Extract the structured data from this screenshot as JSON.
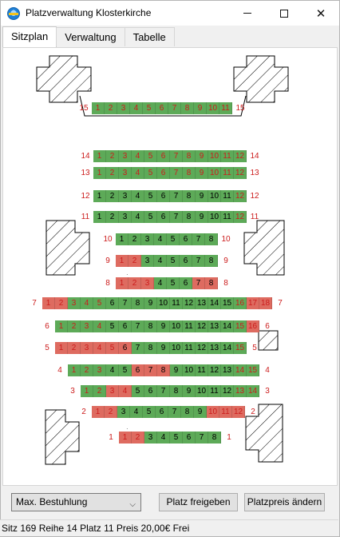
{
  "window": {
    "title": "Platzverwaltung Klosterkirche",
    "minimize_icon": "minimize-icon",
    "maximize_icon": "maximize-icon",
    "close_icon": "close-icon"
  },
  "tabs": [
    {
      "label": "Sitzplan",
      "active": true
    },
    {
      "label": "Verwaltung",
      "active": false
    },
    {
      "label": "Tabelle",
      "active": false
    }
  ],
  "colors": {
    "free": "#5daa58",
    "taken": "#de6b60",
    "label": "#cc1c1c"
  },
  "seat_plan": {
    "rows": [
      {
        "row": "15",
        "seats": [
          "1",
          "2",
          "3",
          "4",
          "5",
          "6",
          "7",
          "8",
          "9",
          "10",
          "11"
        ],
        "taken": [],
        "red_numbers": [
          "1",
          "2",
          "3",
          "4",
          "5",
          "6",
          "7",
          "8",
          "9",
          "10",
          "11"
        ]
      },
      {
        "row": "14",
        "seats": [
          "1",
          "2",
          "3",
          "4",
          "5",
          "6",
          "7",
          "8",
          "9",
          "10",
          "11",
          "12"
        ],
        "taken": [],
        "red_numbers": [
          "1",
          "2",
          "3",
          "4",
          "5",
          "6",
          "7",
          "8",
          "9",
          "10",
          "11",
          "12"
        ]
      },
      {
        "row": "13",
        "seats": [
          "1",
          "2",
          "3",
          "4",
          "5",
          "6",
          "7",
          "8",
          "9",
          "10",
          "11",
          "12"
        ],
        "taken": [],
        "red_numbers": [
          "1",
          "2",
          "3",
          "4",
          "5",
          "6",
          "7",
          "8",
          "9",
          "10",
          "11",
          "12"
        ]
      },
      {
        "row": "12",
        "seats": [
          "1",
          "2",
          "3",
          "4",
          "5",
          "6",
          "7",
          "8",
          "9",
          "10",
          "11",
          "12"
        ],
        "taken": [],
        "red_numbers": [
          "12"
        ]
      },
      {
        "row": "11",
        "seats": [
          "1",
          "2",
          "3",
          "4",
          "5",
          "6",
          "7",
          "8",
          "9",
          "10",
          "11",
          "12"
        ],
        "taken": [],
        "red_numbers": [
          "12"
        ]
      },
      {
        "row": "10",
        "seats": [
          "1",
          "2",
          "3",
          "4",
          "5",
          "6",
          "7",
          "8"
        ],
        "taken": [],
        "red_numbers": []
      },
      {
        "row": "9",
        "seats": [
          "1",
          "2",
          "3",
          "4",
          "5",
          "6",
          "7",
          "8"
        ],
        "taken": [
          "1",
          "2"
        ],
        "red_numbers": [
          "1",
          "2"
        ]
      },
      {
        "row": "8",
        "seats": [
          "1",
          "2",
          "3",
          "4",
          "5",
          "6",
          "7",
          "8"
        ],
        "taken": [
          "1",
          "2",
          "3",
          "7",
          "8"
        ],
        "red_numbers": [
          "1",
          "2",
          "3"
        ]
      },
      {
        "row": "7",
        "seats": [
          "1",
          "2",
          "3",
          "4",
          "5",
          "6",
          "7",
          "8",
          "9",
          "10",
          "11",
          "12",
          "13",
          "14",
          "15",
          "16",
          "17",
          "18"
        ],
        "taken": [
          "1",
          "2",
          "17",
          "18"
        ],
        "red_numbers": [
          "1",
          "2",
          "3",
          "4",
          "5",
          "16",
          "17",
          "18"
        ]
      },
      {
        "row": "6",
        "seats": [
          "1",
          "2",
          "3",
          "4",
          "5",
          "6",
          "7",
          "8",
          "9",
          "10",
          "11",
          "12",
          "13",
          "14",
          "15",
          "16"
        ],
        "taken": [
          "16"
        ],
        "red_numbers": [
          "1",
          "2",
          "3",
          "4",
          "15",
          "16"
        ]
      },
      {
        "row": "5",
        "seats": [
          "1",
          "2",
          "3",
          "4",
          "5",
          "6",
          "7",
          "8",
          "9",
          "10",
          "11",
          "12",
          "13",
          "14",
          "15"
        ],
        "taken": [
          "1",
          "2",
          "3",
          "4",
          "5",
          "6"
        ],
        "red_numbers": [
          "1",
          "2",
          "3",
          "4",
          "5",
          "15"
        ]
      },
      {
        "row": "4",
        "seats": [
          "1",
          "2",
          "3",
          "4",
          "5",
          "6",
          "7",
          "8",
          "9",
          "10",
          "11",
          "12",
          "13",
          "14",
          "15"
        ],
        "taken": [
          "6",
          "7",
          "8"
        ],
        "red_numbers": [
          "1",
          "2",
          "3",
          "14",
          "15"
        ]
      },
      {
        "row": "3",
        "seats": [
          "1",
          "2",
          "3",
          "4",
          "5",
          "6",
          "7",
          "8",
          "9",
          "10",
          "11",
          "12",
          "13",
          "14"
        ],
        "taken": [
          "3",
          "4"
        ],
        "red_numbers": [
          "1",
          "2",
          "3",
          "4",
          "13",
          "14"
        ]
      },
      {
        "row": "2",
        "seats": [
          "1",
          "2",
          "3",
          "4",
          "5",
          "6",
          "7",
          "8",
          "9",
          "10",
          "11",
          "12"
        ],
        "taken": [
          "1",
          "2",
          "10",
          "11",
          "12"
        ],
        "red_numbers": [
          "1",
          "2",
          "10",
          "11",
          "12"
        ]
      },
      {
        "row": "1",
        "seats": [
          "1",
          "2",
          "3",
          "4",
          "5",
          "6",
          "7",
          "8"
        ],
        "taken": [
          "1",
          "2"
        ],
        "red_numbers": [
          "1",
          "2"
        ]
      }
    ]
  },
  "controls": {
    "seating_select_value": "Max. Bestuhlung",
    "free_seat_button": "Platz freigeben",
    "change_price_button": "Platzpreis ändern"
  },
  "status_bar": "Sitz 169 Reihe 14 Platz 11  Preis 20,00€ Frei"
}
